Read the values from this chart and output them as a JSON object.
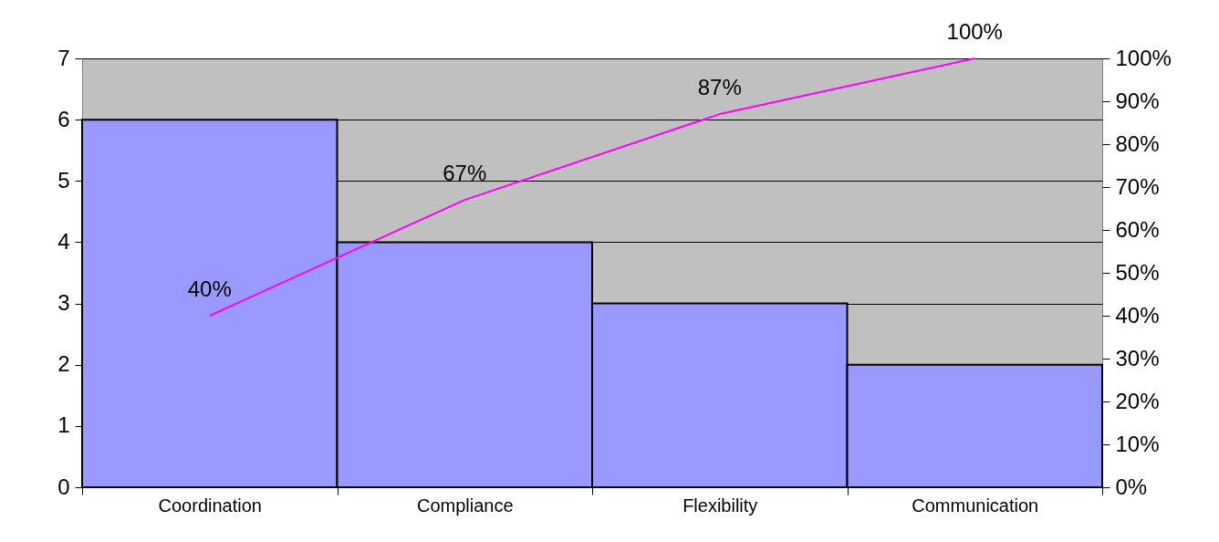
{
  "chart_data": {
    "type": "bar",
    "categories": [
      "Coordination",
      "Compliance",
      "Flexibility",
      "Communication"
    ],
    "series": [
      {
        "color": "#9999ff",
        "values": [
          6,
          4,
          3,
          2
        ]
      },
      {
        "type": "line",
        "axis": "y2",
        "color": "#ff00ff",
        "values": [
          40,
          67,
          87,
          100
        ],
        "value_labels": [
          "40%",
          "67%",
          "87%",
          "100%"
        ]
      }
    ],
    "ylim": [
      0,
      7
    ],
    "yticks": [
      0,
      1,
      2,
      3,
      4,
      5,
      6,
      7
    ],
    "y2lim": [
      0,
      100
    ],
    "y2ticks": [
      {
        "value": 0,
        "label": "0%"
      },
      {
        "value": 10,
        "label": "10%"
      },
      {
        "value": 20,
        "label": "20%"
      },
      {
        "value": 30,
        "label": "30%"
      },
      {
        "value": 40,
        "label": "40%"
      },
      {
        "value": 50,
        "label": "50%"
      },
      {
        "value": 60,
        "label": "60%"
      },
      {
        "value": 70,
        "label": "70%"
      },
      {
        "value": 80,
        "label": "80%"
      },
      {
        "value": 90,
        "label": "90%"
      },
      {
        "value": 100,
        "label": "100%"
      }
    ],
    "grid": "y",
    "marker": "none",
    "line_style": "solid"
  }
}
